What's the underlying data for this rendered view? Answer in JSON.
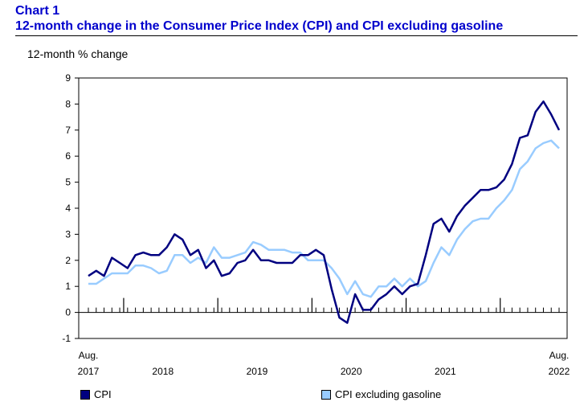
{
  "header": {
    "chart_number": "Chart 1",
    "title": "12-month change in the Consumer Price Index (CPI) and CPI excluding gasoline"
  },
  "colors": {
    "cpi": "#000080",
    "cpi_ex_gas": "#99ccff",
    "title": "#0000cc"
  },
  "chart_data": {
    "type": "line",
    "title": "12-month change in the Consumer Price Index (CPI) and CPI excluding gasoline",
    "ylabel": "12-month % change",
    "xlabel": "",
    "ylim": [
      -1,
      9
    ],
    "yticks": [
      -1,
      0,
      1,
      2,
      3,
      4,
      5,
      6,
      7,
      8,
      9
    ],
    "grid": false,
    "legend_position": "bottom",
    "x_start": "Aug. 2017",
    "x_end": "Aug. 2022",
    "x_tick_labels": [
      {
        "month_index": 0,
        "line1": "Aug.",
        "line2": "2017"
      },
      {
        "month_index": 9.5,
        "line1": "",
        "line2": "2018"
      },
      {
        "month_index": 21.5,
        "line1": "",
        "line2": "2019"
      },
      {
        "month_index": 33.5,
        "line1": "",
        "line2": "2020"
      },
      {
        "month_index": 45.5,
        "line1": "",
        "line2": "2021"
      },
      {
        "month_index": 60,
        "line1": "Aug.",
        "line2": "2022"
      }
    ],
    "year_boundaries": [
      4.5,
      16.5,
      28.5,
      40.5,
      52.5
    ],
    "series": [
      {
        "name": "CPI",
        "values": [
          1.4,
          1.6,
          1.4,
          2.1,
          1.9,
          1.7,
          2.2,
          2.3,
          2.2,
          2.2,
          2.5,
          3.0,
          2.8,
          2.2,
          2.4,
          1.7,
          2.0,
          1.4,
          1.5,
          1.9,
          2.0,
          2.4,
          2.0,
          2.0,
          1.9,
          1.9,
          1.9,
          2.2,
          2.2,
          2.4,
          2.2,
          0.9,
          -0.2,
          -0.4,
          0.7,
          0.1,
          0.1,
          0.5,
          0.7,
          1.0,
          0.7,
          1.0,
          1.1,
          2.2,
          3.4,
          3.6,
          3.1,
          3.7,
          4.1,
          4.4,
          4.7,
          4.7,
          4.8,
          5.1,
          5.7,
          6.7,
          6.8,
          7.7,
          8.1,
          7.6,
          7.0
        ]
      },
      {
        "name": "CPI excluding gasoline",
        "values": [
          1.1,
          1.1,
          1.3,
          1.5,
          1.5,
          1.5,
          1.8,
          1.8,
          1.7,
          1.5,
          1.6,
          2.2,
          2.2,
          1.9,
          2.1,
          1.9,
          2.5,
          2.1,
          2.1,
          2.2,
          2.3,
          2.7,
          2.6,
          2.4,
          2.4,
          2.4,
          2.3,
          2.3,
          2.0,
          2.0,
          2.0,
          1.7,
          1.3,
          0.7,
          1.2,
          0.7,
          0.6,
          1.0,
          1.0,
          1.3,
          1.0,
          1.3,
          1.0,
          1.2,
          1.9,
          2.5,
          2.2,
          2.8,
          3.2,
          3.5,
          3.6,
          3.6,
          4.0,
          4.3,
          4.7,
          5.5,
          5.8,
          6.3,
          6.5,
          6.6,
          6.3
        ]
      }
    ]
  }
}
